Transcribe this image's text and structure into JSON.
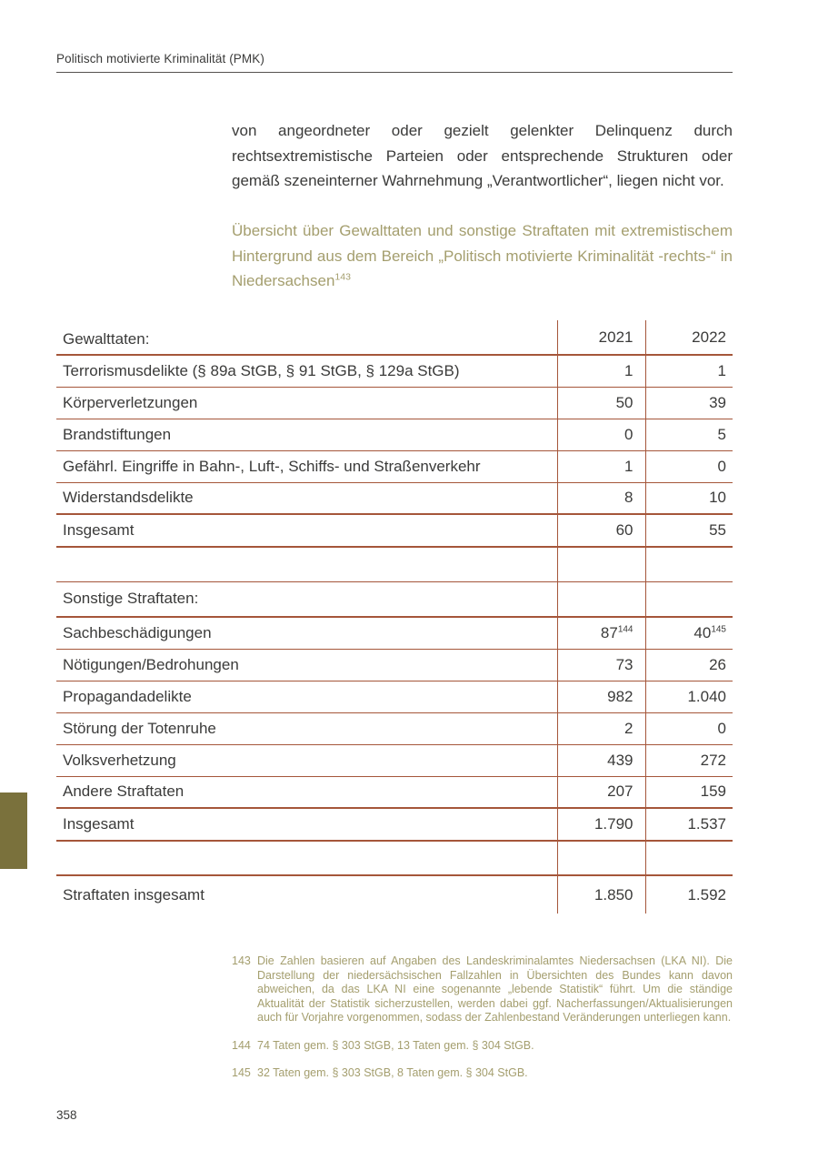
{
  "page": {
    "running_header": "Politisch motivierte Kriminalität (PMK)",
    "page_number": "358"
  },
  "colors": {
    "text": "#3b3b3a",
    "olive_text": "#a49e6e",
    "olive_marker": "#7a713c",
    "table_rule": "#a5563a"
  },
  "intro_paragraph": "von angeordneter oder gezielt gelenkter Delinquenz durch rechtsextremistische Parteien oder entsprechende Strukturen oder gemäß szeneinterner Wahrnehmung „Verantwortlicher“, liegen nicht vor.",
  "section_heading": {
    "text": "Übersicht über Gewalttaten und sonstige Straftaten mit extremistischem Hintergrund aus dem Bereich „Politisch motivierte Kriminalität -rechts-“ in Niedersachsen",
    "footnote_ref": "143"
  },
  "table": {
    "header": {
      "label": "Gewalttaten:",
      "col2021": "2021",
      "col2022": "2022"
    },
    "rows": [
      {
        "type": "normal",
        "label": "Terrorismusdelikte (§ 89a StGB, § 91 StGB, § 129a StGB)",
        "v2021": "1",
        "v2022": "1"
      },
      {
        "type": "normal",
        "label": "Körperverletzungen",
        "v2021": "50",
        "v2022": "39"
      },
      {
        "type": "normal",
        "label": "Brandstiftungen",
        "v2021": "0",
        "v2022": "5"
      },
      {
        "type": "normal",
        "label": "Gefährl. Eingriffe in Bahn-, Luft-, Schiffs- und Straßenverkehr",
        "v2021": "1",
        "v2022": "0"
      },
      {
        "type": "normal",
        "label": "Widerstandsdelikte",
        "v2021": "8",
        "v2022": "10"
      },
      {
        "type": "total",
        "label": "Insgesamt",
        "v2021": "60",
        "v2022": "55"
      },
      {
        "type": "spacer",
        "label": "",
        "v2021": "",
        "v2022": ""
      },
      {
        "type": "section",
        "label": "Sonstige Straftaten:",
        "v2021": "",
        "v2022": ""
      },
      {
        "type": "normal",
        "label": "Sachbeschädigungen",
        "v2021": "87",
        "sup2021": "144",
        "v2022": "40",
        "sup2022": "145"
      },
      {
        "type": "normal",
        "label": "Nötigungen/Bedrohungen",
        "v2021": "73",
        "v2022": "26"
      },
      {
        "type": "normal",
        "label": "Propagandadelikte",
        "v2021": "982",
        "v2022": "1.040"
      },
      {
        "type": "normal",
        "label": "Störung der Totenruhe",
        "v2021": "2",
        "v2022": "0"
      },
      {
        "type": "normal",
        "label": "Volksverhetzung",
        "v2021": "439",
        "v2022": "272"
      },
      {
        "type": "normal",
        "label": "Andere Straftaten",
        "v2021": "207",
        "v2022": "159"
      },
      {
        "type": "total",
        "label": "Insgesamt",
        "v2021": "1.790",
        "v2022": "1.537"
      },
      {
        "type": "spacer",
        "label": "",
        "v2021": "",
        "v2022": ""
      },
      {
        "type": "grand",
        "label": "Straftaten insgesamt",
        "v2021": "1.850",
        "v2022": "1.592"
      }
    ]
  },
  "footnotes": [
    {
      "num": "143",
      "text": "Die Zahlen basieren auf Angaben des Landeskriminalamtes Niedersachsen (LKA NI). Die Darstellung der niedersächsischen Fallzahlen in Übersichten des Bundes kann davon abweichen, da das LKA NI eine sogenannte „lebende Statistik“ führt. Um die ständige Aktualität der Statistik sicherzustellen, werden dabei ggf. Nacherfassungen/Aktualisierungen auch für Vorjahre vorgenommen, sodass der Zahlenbestand Veränderungen unterliegen kann."
    },
    {
      "num": "144",
      "text": "74 Taten gem. § 303 StGB, 13 Taten gem. § 304 StGB."
    },
    {
      "num": "145",
      "text": "32 Taten gem. § 303 StGB, 8 Taten gem. § 304 StGB."
    }
  ]
}
